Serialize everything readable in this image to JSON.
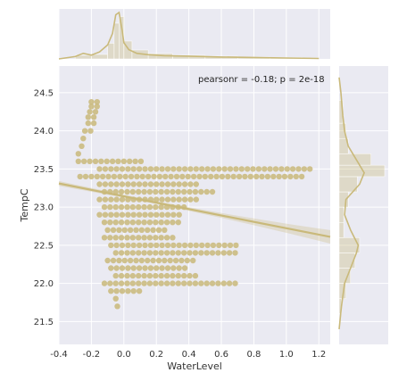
{
  "chart_data": {
    "type": "scatter",
    "title": "",
    "xlabel": "WaterLevel",
    "ylabel": "TempC",
    "xlim": [
      -0.4,
      1.27
    ],
    "ylim": [
      21.2,
      24.85
    ],
    "xticks": [
      "-0.4",
      "-0.2",
      "0.0",
      "0.2",
      "0.4",
      "0.6",
      "0.8",
      "1.0",
      "1.2"
    ],
    "xtick_values": [
      -0.4,
      -0.2,
      0.0,
      0.2,
      0.4,
      0.6,
      0.8,
      1.0,
      1.2
    ],
    "yticks": [
      "21.5",
      "22.0",
      "22.5",
      "23.0",
      "23.5",
      "24.0",
      "24.5"
    ],
    "ytick_values": [
      21.5,
      22.0,
      22.5,
      23.0,
      23.5,
      24.0,
      24.5
    ],
    "grid": true,
    "annotation": "pearsonr = -0.18; p = 2e-18",
    "color": "#c9b97a",
    "regression": {
      "x": [
        -0.4,
        1.27
      ],
      "y": [
        23.31,
        22.61
      ]
    },
    "scatter_rows": [
      {
        "y": 24.38,
        "x0": -0.2,
        "x1": -0.16
      },
      {
        "y": 24.32,
        "x0": -0.2,
        "x1": -0.16
      },
      {
        "y": 24.25,
        "x0": -0.21,
        "x1": -0.17
      },
      {
        "y": 24.18,
        "x0": -0.22,
        "x1": -0.18
      },
      {
        "y": 24.1,
        "x0": -0.22,
        "x1": -0.18
      },
      {
        "y": 24.0,
        "x0": -0.24,
        "x1": -0.2
      },
      {
        "y": 23.9,
        "x0": -0.25,
        "x1": -0.22
      },
      {
        "y": 23.8,
        "x0": -0.26,
        "x1": -0.23
      },
      {
        "y": 23.7,
        "x0": -0.28,
        "x1": -0.25
      },
      {
        "y": 23.6,
        "x0": -0.28,
        "x1": 0.12
      },
      {
        "y": 23.5,
        "x0": -0.15,
        "x1": 1.15
      },
      {
        "y": 23.4,
        "x0": -0.27,
        "x1": 1.1
      },
      {
        "y": 23.3,
        "x0": -0.15,
        "x1": 0.45
      },
      {
        "y": 23.2,
        "x0": -0.12,
        "x1": 0.55
      },
      {
        "y": 23.1,
        "x0": -0.15,
        "x1": 0.45
      },
      {
        "y": 23.0,
        "x0": -0.12,
        "x1": 0.4
      },
      {
        "y": 22.9,
        "x0": -0.15,
        "x1": 0.35
      },
      {
        "y": 22.8,
        "x0": -0.12,
        "x1": 0.35
      },
      {
        "y": 22.7,
        "x0": -0.1,
        "x1": 0.25
      },
      {
        "y": 22.6,
        "x0": -0.12,
        "x1": 0.3
      },
      {
        "y": 22.5,
        "x0": -0.08,
        "x1": 0.72
      },
      {
        "y": 22.4,
        "x0": -0.05,
        "x1": 0.7
      },
      {
        "y": 22.3,
        "x0": -0.1,
        "x1": 0.45
      },
      {
        "y": 22.2,
        "x0": -0.08,
        "x1": 0.4
      },
      {
        "y": 22.1,
        "x0": -0.05,
        "x1": 0.45
      },
      {
        "y": 22.0,
        "x0": -0.12,
        "x1": 0.7
      },
      {
        "y": 21.9,
        "x0": -0.08,
        "x1": 0.1
      },
      {
        "y": 21.8,
        "x0": -0.05,
        "x1": -0.02
      },
      {
        "y": 21.7,
        "x0": -0.04,
        "x1": -0.02
      }
    ],
    "top_density": {
      "x": [
        -0.4,
        -0.3,
        -0.25,
        -0.2,
        -0.15,
        -0.1,
        -0.07,
        -0.05,
        -0.03,
        -0.01,
        0.0,
        0.03,
        0.08,
        0.15,
        0.25,
        0.4,
        0.6,
        0.8,
        1.0,
        1.2
      ],
      "y": [
        0.0,
        0.05,
        0.12,
        0.08,
        0.15,
        0.3,
        0.55,
        0.95,
        1.0,
        0.6,
        0.35,
        0.2,
        0.12,
        0.09,
        0.07,
        0.06,
        0.04,
        0.03,
        0.02,
        0.01
      ]
    },
    "top_hist": {
      "bins": [
        -0.3,
        -0.2,
        -0.1,
        -0.06,
        -0.03,
        0.0,
        0.05,
        0.15,
        0.3,
        0.5,
        0.7,
        0.9,
        1.1,
        1.2
      ],
      "counts": [
        0.08,
        0.1,
        0.35,
        0.8,
        0.95,
        0.4,
        0.2,
        0.12,
        0.08,
        0.06,
        0.04,
        0.03,
        0.02
      ]
    },
    "right_density": {
      "y": [
        21.4,
        21.7,
        22.0,
        22.2,
        22.4,
        22.5,
        22.7,
        22.9,
        23.1,
        23.3,
        23.45,
        23.6,
        23.8,
        24.0,
        24.2,
        24.5,
        24.7
      ],
      "x": [
        0.0,
        0.05,
        0.12,
        0.25,
        0.38,
        0.42,
        0.25,
        0.12,
        0.15,
        0.45,
        0.55,
        0.4,
        0.2,
        0.12,
        0.08,
        0.04,
        0.0
      ]
    },
    "right_hist": {
      "bins": [
        21.6,
        21.8,
        22.0,
        22.2,
        22.4,
        22.6,
        22.8,
        23.0,
        23.2,
        23.4,
        23.55,
        23.7,
        23.9,
        24.1,
        24.4
      ],
      "counts": [
        0.05,
        0.15,
        0.25,
        0.35,
        0.45,
        0.1,
        0.1,
        0.2,
        0.4,
        1.0,
        0.7,
        0.2,
        0.15,
        0.08
      ]
    }
  }
}
